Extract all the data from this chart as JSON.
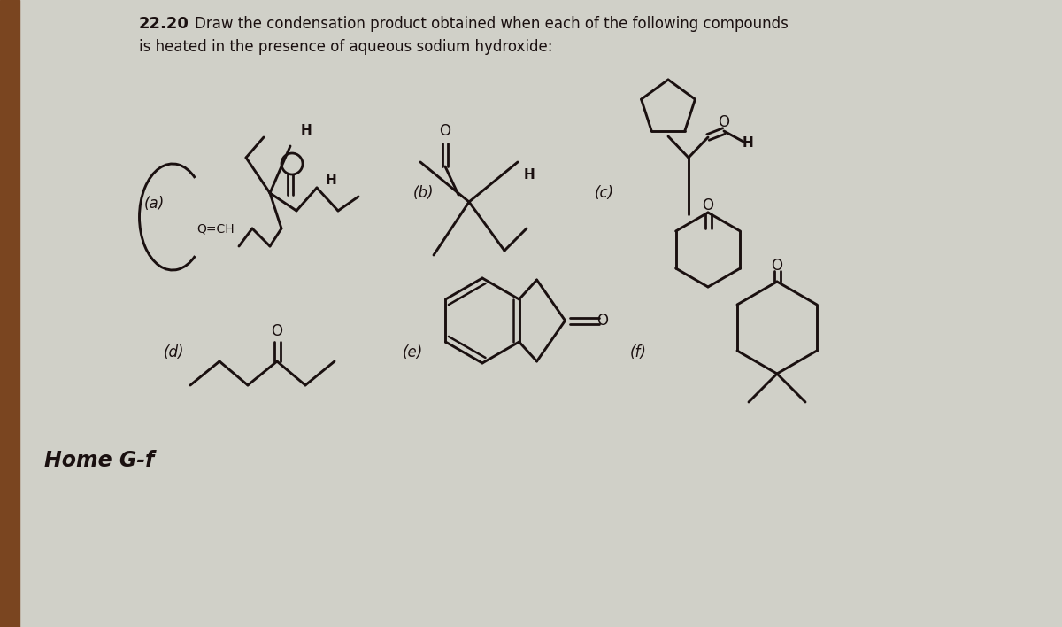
{
  "title_number": "22.20",
  "title_text": "Draw the condensation product obtained when each of the following compounds",
  "title_text2": "is heated in the presence of aqueous sodium hydroxide:",
  "bg_color": "#d0d0c8",
  "sidebar_color": "#7a4520",
  "text_color": "#1a1010",
  "label_a": "(a)",
  "label_b": "(b)",
  "label_c": "(c)",
  "label_d": "(d)",
  "label_e": "(e)",
  "label_f": "(f)",
  "footer_text": "Home G-f"
}
